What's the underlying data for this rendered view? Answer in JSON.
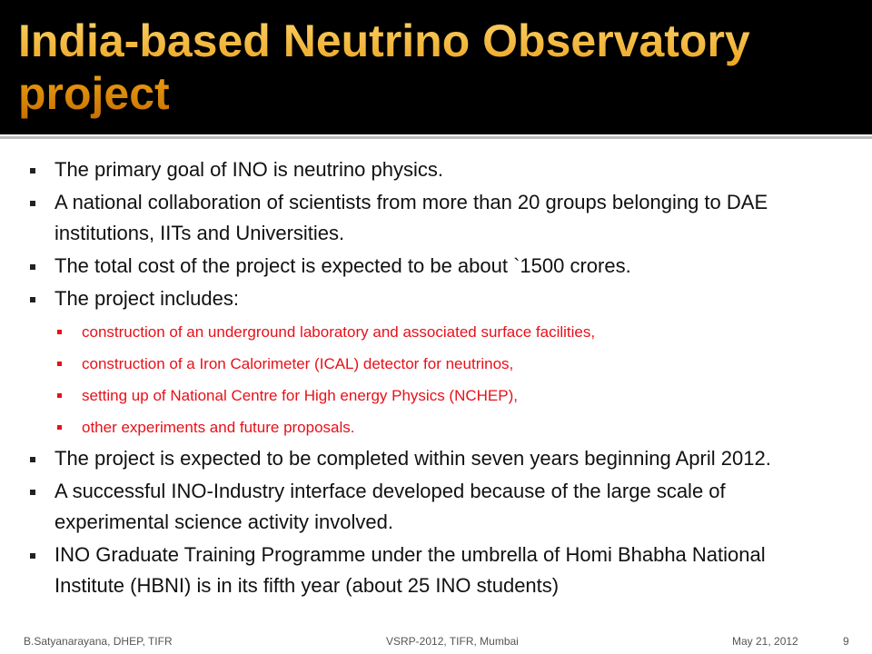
{
  "header": {
    "title": "India-based Neutrino Observatory project"
  },
  "bullets": [
    {
      "text": "The primary goal of INO is neutrino physics."
    },
    {
      "text": "A national collaboration of scientists from more than 20 groups belonging to DAE institutions, IITs and Universities."
    },
    {
      "text": "The total cost of the project is expected to be about `1500 crores."
    },
    {
      "text": "The project includes:",
      "sub_bullets": [
        "construction of an underground laboratory and associated surface facilities,",
        "construction of a Iron Calorimeter (ICAL) detector for neutrinos,",
        "setting up of National Centre for High energy Physics (NCHEP),",
        "other experiments and future proposals."
      ]
    },
    {
      "text": "The project is expected to be completed within seven years beginning April 2012."
    },
    {
      "text": "A successful INO-Industry interface developed because of the large scale of experimental science activity involved."
    },
    {
      "text": "INO Graduate Training Programme under the umbrella of Homi Bhabha National Institute (HBNI) is in its fifth year (about 25 INO students)"
    }
  ],
  "footer": {
    "left": "B.Satyanarayana, DHEP, TIFR",
    "center": "VSRP-2012, TIFR, Mumbai",
    "right": "May 21, 2012",
    "page": "9"
  }
}
